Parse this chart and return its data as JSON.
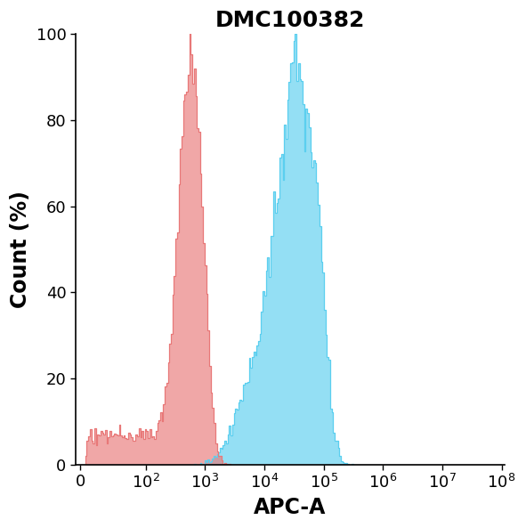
{
  "title": "DMC100382",
  "xlabel": "APC-A",
  "ylabel": "Count (%)",
  "title_fontsize": 18,
  "label_fontsize": 17,
  "tick_fontsize": 13,
  "ylim": [
    0,
    100
  ],
  "yticks": [
    0,
    20,
    40,
    60,
    80,
    100
  ],
  "red_color": "#E87878",
  "blue_color": "#5BCFEF",
  "background_color": "#ffffff",
  "red_alpha": 0.65,
  "blue_alpha": 0.65,
  "seed": 12345
}
